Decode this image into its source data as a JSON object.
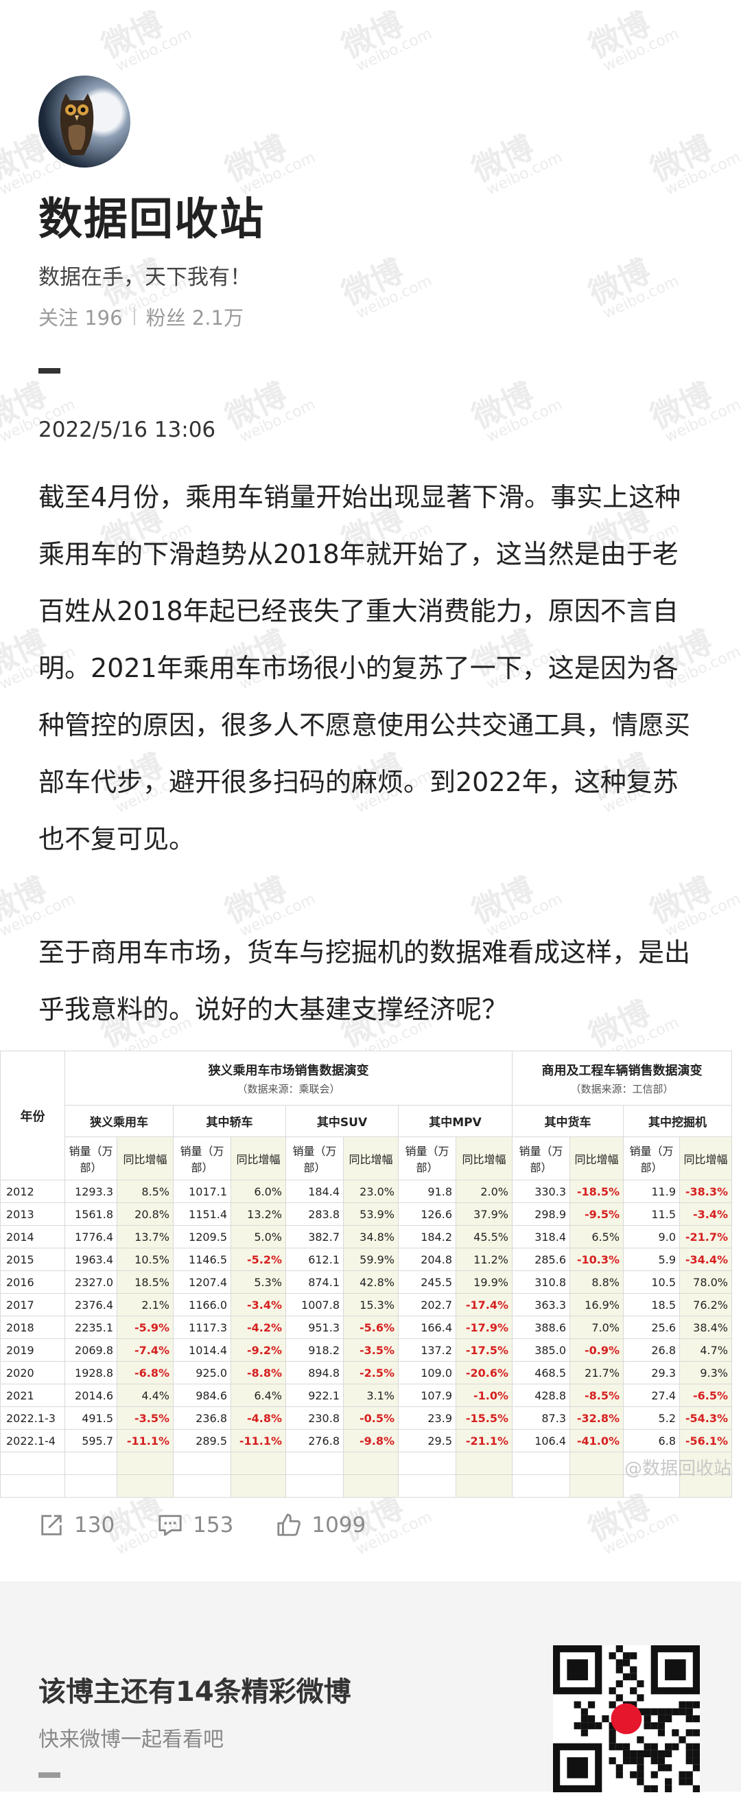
{
  "profile": {
    "name": "数据回收站",
    "motto": "数据在手，天下我有！",
    "follow_label": "关注",
    "follow_count": "196",
    "fans_label": "粉丝",
    "fans_count": "2.1万"
  },
  "post": {
    "date": "2022/5/16 13:06",
    "paragraph1": "截至4月份，乘用车销量开始出现显著下滑。事实上这种乘用车的下滑趋势从2018年就开始了，这当然是由于老百姓从2018年起已经丧失了重大消费能力，原因不言自明。2021年乘用车市场很小的复苏了一下，这是因为各种管控的原因，很多人不愿意使用公共交通工具，情愿买部车代步，避开很多扫码的麻烦。到2022年，这种复苏也不复可见。",
    "paragraph2": "至于商用车市场，货车与挖掘机的数据难看成这样，是出乎我意料的。说好的大基建支撑经济呢？"
  },
  "table": {
    "year_header": "年份",
    "group1_title": "狭义乘用车市场销售数据演变",
    "group1_source": "（数据来源：乘联会）",
    "group2_title": "商用及工程车辆销售数据演变",
    "group2_source": "（数据来源：工信部）",
    "categories": [
      "狭义乘用车",
      "其中轿车",
      "其中SUV",
      "其中MPV",
      "其中货车",
      "其中挖掘机"
    ],
    "sales_label": "销量（万部）",
    "yoy_label": "同比增幅",
    "rows": [
      {
        "year": "2012",
        "vals": [
          "1293.3",
          "8.5%",
          "1017.1",
          "6.0%",
          "184.4",
          "23.0%",
          "91.8",
          "2.0%",
          "330.3",
          "-18.5%",
          "11.9",
          "-38.3%"
        ]
      },
      {
        "year": "2013",
        "vals": [
          "1561.8",
          "20.8%",
          "1151.4",
          "13.2%",
          "283.8",
          "53.9%",
          "126.6",
          "37.9%",
          "298.9",
          "-9.5%",
          "11.5",
          "-3.4%"
        ]
      },
      {
        "year": "2014",
        "vals": [
          "1776.4",
          "13.7%",
          "1209.5",
          "5.0%",
          "382.7",
          "34.8%",
          "184.2",
          "45.5%",
          "318.4",
          "6.5%",
          "9.0",
          "-21.7%"
        ]
      },
      {
        "year": "2015",
        "vals": [
          "1963.4",
          "10.5%",
          "1146.5",
          "-5.2%",
          "612.1",
          "59.9%",
          "204.8",
          "11.2%",
          "285.6",
          "-10.3%",
          "5.9",
          "-34.4%"
        ]
      },
      {
        "year": "2016",
        "vals": [
          "2327.0",
          "18.5%",
          "1207.4",
          "5.3%",
          "874.1",
          "42.8%",
          "245.5",
          "19.9%",
          "310.8",
          "8.8%",
          "10.5",
          "78.0%"
        ]
      },
      {
        "year": "2017",
        "vals": [
          "2376.4",
          "2.1%",
          "1166.0",
          "-3.4%",
          "1007.8",
          "15.3%",
          "202.7",
          "-17.4%",
          "363.3",
          "16.9%",
          "18.5",
          "76.2%"
        ]
      },
      {
        "year": "2018",
        "vals": [
          "2235.1",
          "-5.9%",
          "1117.3",
          "-4.2%",
          "951.3",
          "-5.6%",
          "166.4",
          "-17.9%",
          "388.6",
          "7.0%",
          "25.6",
          "38.4%"
        ]
      },
      {
        "year": "2019",
        "vals": [
          "2069.8",
          "-7.4%",
          "1014.4",
          "-9.2%",
          "918.2",
          "-3.5%",
          "137.2",
          "-17.5%",
          "385.0",
          "-0.9%",
          "26.8",
          "4.7%"
        ]
      },
      {
        "year": "2020",
        "vals": [
          "1928.8",
          "-6.8%",
          "925.0",
          "-8.8%",
          "894.8",
          "-2.5%",
          "109.0",
          "-20.6%",
          "468.5",
          "21.7%",
          "29.3",
          "9.3%"
        ]
      },
      {
        "year": "2021",
        "vals": [
          "2014.6",
          "4.4%",
          "984.6",
          "6.4%",
          "922.1",
          "3.1%",
          "107.9",
          "-1.0%",
          "428.8",
          "-8.5%",
          "27.4",
          "-6.5%"
        ]
      },
      {
        "year": "2022.1-3",
        "vals": [
          "491.5",
          "-3.5%",
          "236.8",
          "-4.8%",
          "230.8",
          "-0.5%",
          "23.9",
          "-15.5%",
          "87.3",
          "-32.8%",
          "5.2",
          "-54.3%"
        ]
      },
      {
        "year": "2022.1-4",
        "vals": [
          "595.7",
          "-11.1%",
          "289.5",
          "-11.1%",
          "276.8",
          "-9.8%",
          "29.5",
          "-21.1%",
          "106.4",
          "-41.0%",
          "6.8",
          "-56.1%"
        ]
      }
    ],
    "watermark": "@数据回收站"
  },
  "actions": {
    "share_count": "130",
    "comment_count": "153",
    "like_count": "1099"
  },
  "footer": {
    "title": "该博主还有14条精彩微博",
    "subtitle": "快来微博一起看看吧"
  },
  "watermark_text": "微博",
  "watermark_sub": "weibo.com",
  "icons": [
    "share-icon",
    "comment-icon",
    "like-icon",
    "qr-code"
  ]
}
